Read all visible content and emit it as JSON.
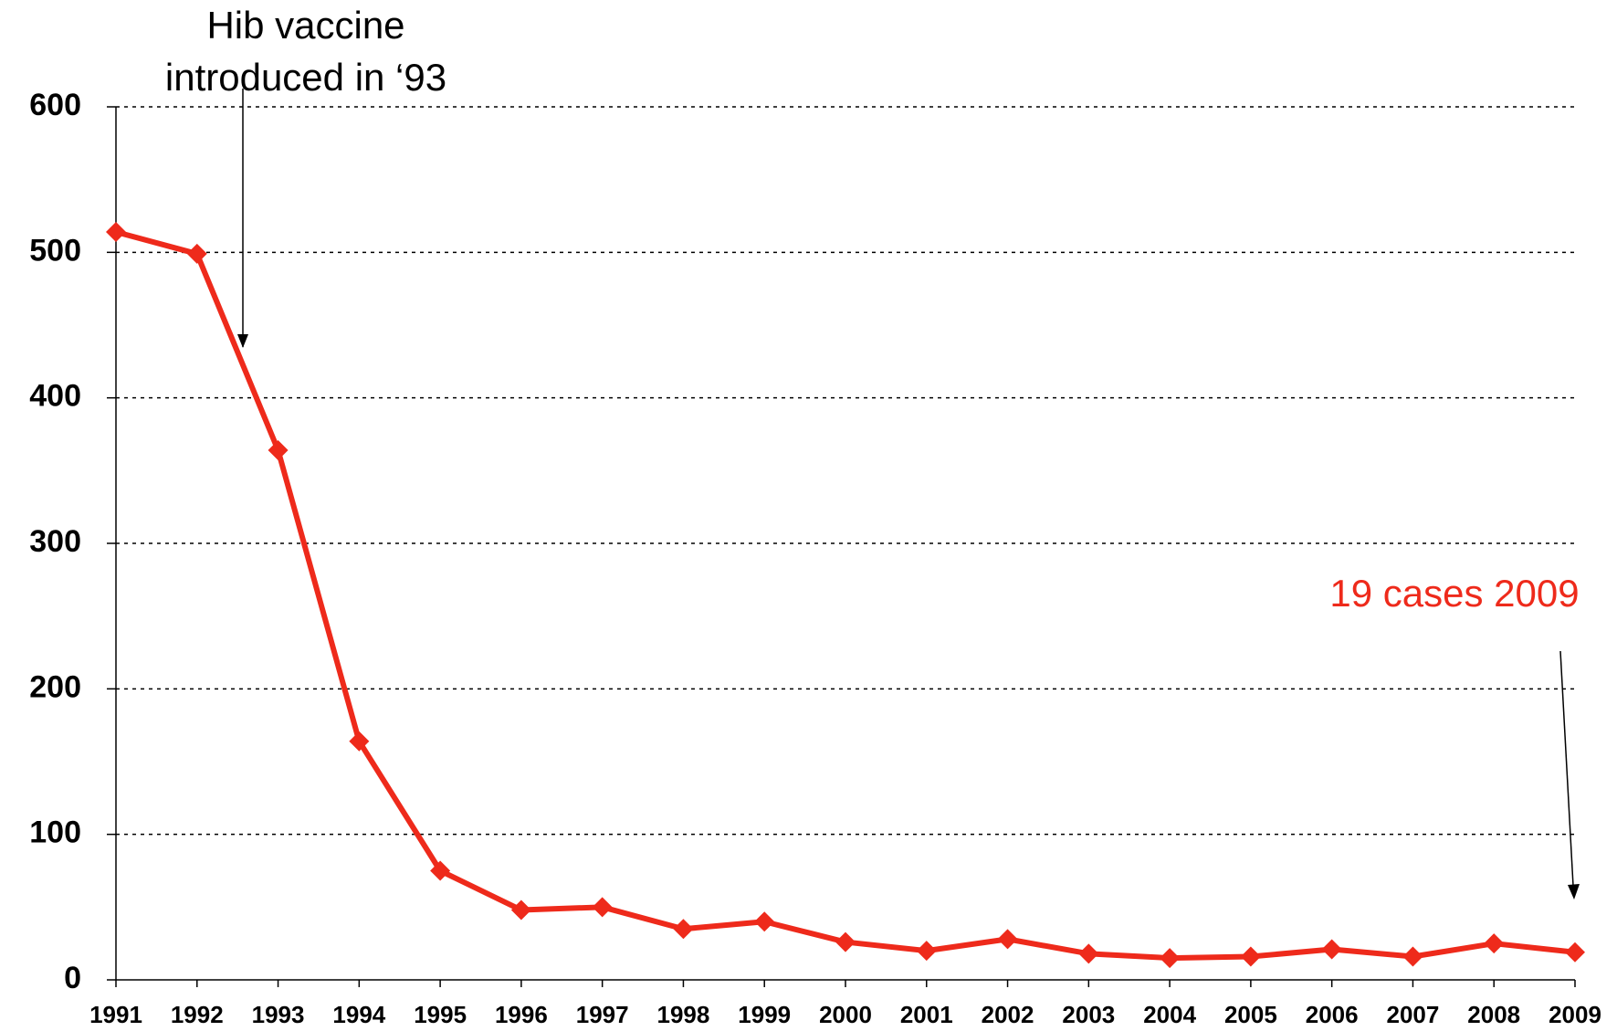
{
  "chart_data": {
    "type": "line",
    "categories": [
      "1991",
      "1992",
      "1993",
      "1994",
      "1995",
      "1996",
      "1997",
      "1998",
      "1999",
      "2000",
      "2001",
      "2002",
      "2003",
      "2004",
      "2005",
      "2006",
      "2007",
      "2008",
      "2009"
    ],
    "values": [
      514,
      499,
      364,
      164,
      75,
      48,
      50,
      35,
      40,
      26,
      20,
      28,
      18,
      15,
      16,
      21,
      16,
      25,
      19
    ],
    "color": "#ee2a1b",
    "ylim": [
      0,
      600
    ],
    "yticks": [
      0,
      100,
      200,
      300,
      400,
      500,
      600
    ],
    "grid": true,
    "annotations": [
      "Hib vaccine",
      "introduced in ‘93",
      "19 cases 2009"
    ]
  }
}
